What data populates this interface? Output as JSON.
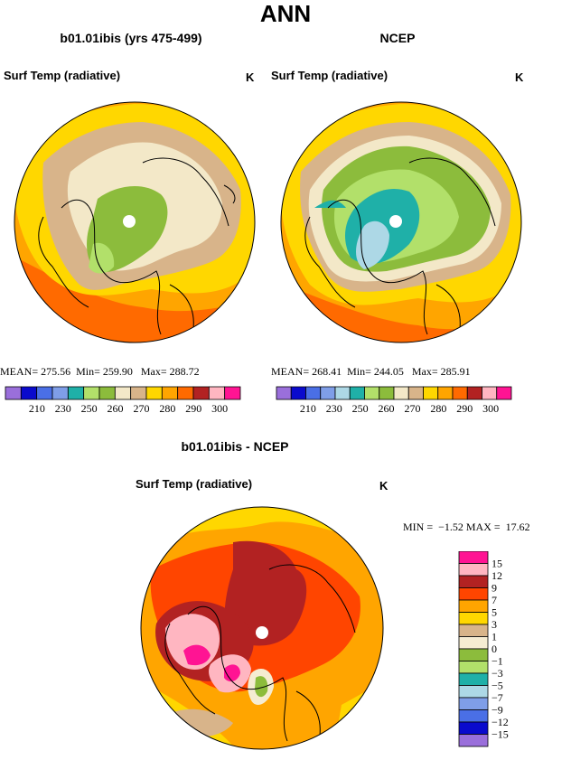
{
  "page_title": "ANN",
  "panels": [
    {
      "model_title": "b01.01ibis (yrs 475-499)",
      "variable": "Surf Temp (radiative)",
      "units": "K",
      "stats": {
        "mean_label": "MEAN=",
        "mean": "275.56",
        "min_label": "Min=",
        "min": "259.90",
        "max_label": "Max=",
        "max": "288.72"
      },
      "colorbar": {
        "colors": [
          "#9a6fdb",
          "#0a0acd",
          "#4a6fe6",
          "#7f9ee8",
          "#1fb0a8",
          "#b2e06a",
          "#8cbc3c",
          "#f3e8c8",
          "#d8b48a",
          "#ffd700",
          "#ffa500",
          "#ff6a00",
          "#b22222",
          "#ffb6c1",
          "#ff1493"
        ],
        "labels": [
          "210",
          "230",
          "250",
          "260",
          "270",
          "280",
          "290",
          "300"
        ]
      }
    },
    {
      "model_title": "NCEP",
      "variable": "Surf Temp (radiative)",
      "units": "K",
      "stats": {
        "mean_label": "MEAN=",
        "mean": "268.41",
        "min_label": "Min=",
        "min": "244.05",
        "max_label": "Max=",
        "max": "285.91"
      },
      "colorbar": {
        "colors": [
          "#9a6fdb",
          "#0a0acd",
          "#4a6fe6",
          "#7f9ee8",
          "#add8e6",
          "#1fb0a8",
          "#b2e06a",
          "#8cbc3c",
          "#f3e8c8",
          "#d8b48a",
          "#ffd700",
          "#ffa500",
          "#ff6a00",
          "#b22222",
          "#ffb6c1",
          "#ff1493"
        ],
        "labels": [
          "210",
          "230",
          "250",
          "260",
          "270",
          "280",
          "290",
          "300"
        ]
      }
    }
  ],
  "difference": {
    "title": "b01.01ibis - NCEP",
    "variable": "Surf Temp (radiative)",
    "units": "K",
    "min_label": "MIN =",
    "min": "−1.52",
    "max_label": "MAX =",
    "max": "17.62",
    "legend": [
      {
        "label": "15",
        "color": "#ff1493"
      },
      {
        "label": "12",
        "color": "#ffb6c1"
      },
      {
        "label": "9",
        "color": "#b22222"
      },
      {
        "label": "7",
        "color": "#ff4500"
      },
      {
        "label": "5",
        "color": "#ffa500"
      },
      {
        "label": "3",
        "color": "#ffd700"
      },
      {
        "label": "1",
        "color": "#d8b48a"
      },
      {
        "label": "0",
        "color": "#f5ecd2"
      },
      {
        "label": "−1",
        "color": "#8cbc3c"
      },
      {
        "label": "−3",
        "color": "#b2e06a"
      },
      {
        "label": "−5",
        "color": "#1fb0a8"
      },
      {
        "label": "−7",
        "color": "#add8e6"
      },
      {
        "label": "−9",
        "color": "#7f9ee8"
      },
      {
        "label": "−12",
        "color": "#4a6fe6"
      },
      {
        "label": "−15",
        "color": "#0a0acd"
      },
      {
        "label": "",
        "color": "#9a6fdb"
      }
    ]
  }
}
